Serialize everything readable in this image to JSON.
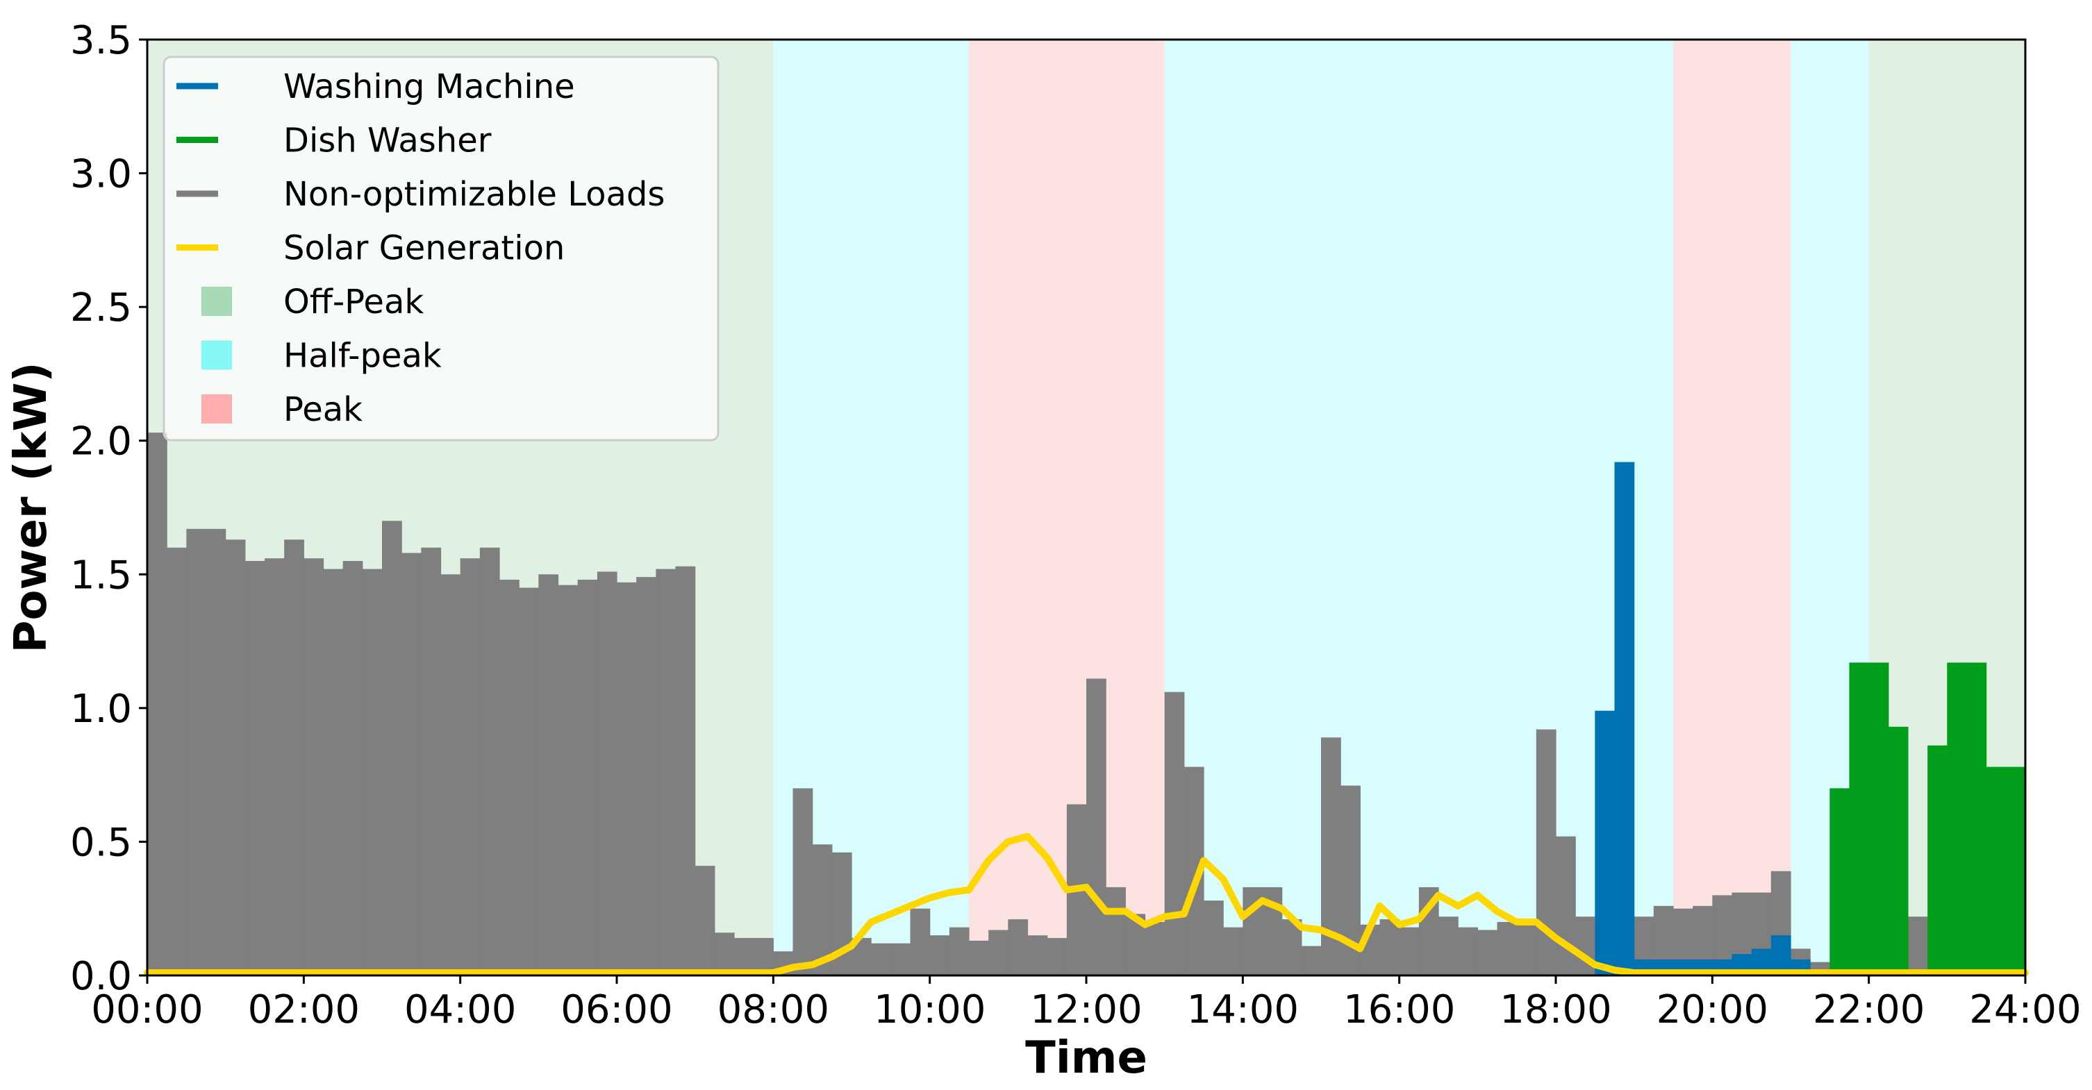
{
  "chart_data": {
    "type": "bar",
    "xlabel": "Time",
    "ylabel": "Power (kW)",
    "xlim": [
      0,
      24
    ],
    "ylim": [
      0,
      3.5
    ],
    "bin_hours": 0.25,
    "xticks": [
      {
        "value": 0,
        "label": "00:00"
      },
      {
        "value": 2,
        "label": "02:00"
      },
      {
        "value": 4,
        "label": "04:00"
      },
      {
        "value": 6,
        "label": "06:00"
      },
      {
        "value": 8,
        "label": "08:00"
      },
      {
        "value": 10,
        "label": "10:00"
      },
      {
        "value": 12,
        "label": "12:00"
      },
      {
        "value": 14,
        "label": "14:00"
      },
      {
        "value": 16,
        "label": "16:00"
      },
      {
        "value": 18,
        "label": "18:00"
      },
      {
        "value": 20,
        "label": "20:00"
      },
      {
        "value": 22,
        "label": "22:00"
      },
      {
        "value": 24,
        "label": "24:00"
      }
    ],
    "yticks": [
      {
        "value": 0,
        "label": "0.0"
      },
      {
        "value": 0.5,
        "label": "0.5"
      },
      {
        "value": 1.0,
        "label": "1.0"
      },
      {
        "value": 1.5,
        "label": "1.5"
      },
      {
        "value": 2.0,
        "label": "2.0"
      },
      {
        "value": 2.5,
        "label": "2.5"
      },
      {
        "value": 3.0,
        "label": "3.0"
      },
      {
        "value": 3.5,
        "label": "3.5"
      }
    ],
    "tariff_periods": [
      {
        "start": 0,
        "end": 8,
        "kind": "off"
      },
      {
        "start": 8,
        "end": 10.5,
        "kind": "half"
      },
      {
        "start": 10.5,
        "end": 13,
        "kind": "peak"
      },
      {
        "start": 13,
        "end": 19.5,
        "kind": "half"
      },
      {
        "start": 19.5,
        "end": 21,
        "kind": "peak"
      },
      {
        "start": 21,
        "end": 22,
        "kind": "half"
      },
      {
        "start": 22,
        "end": 24,
        "kind": "off"
      }
    ],
    "series": [
      {
        "name": "Non-optimizable Loads",
        "kind": "bar",
        "color": "#7f7f7f",
        "values": [
          2.03,
          1.6,
          1.67,
          1.67,
          1.63,
          1.55,
          1.56,
          1.63,
          1.56,
          1.52,
          1.55,
          1.52,
          1.7,
          1.58,
          1.6,
          1.5,
          1.56,
          1.6,
          1.48,
          1.45,
          1.5,
          1.46,
          1.48,
          1.51,
          1.47,
          1.49,
          1.52,
          1.53,
          0.41,
          0.16,
          0.14,
          0.14,
          0.09,
          0.7,
          0.49,
          0.46,
          0.14,
          0.12,
          0.12,
          0.25,
          0.15,
          0.18,
          0.13,
          0.17,
          0.21,
          0.15,
          0.14,
          0.64,
          1.11,
          0.33,
          0.23,
          0.2,
          1.06,
          0.78,
          0.28,
          0.18,
          0.33,
          0.33,
          0.21,
          0.11,
          0.89,
          0.71,
          0.19,
          0.21,
          0.18,
          0.33,
          0.22,
          0.18,
          0.17,
          0.2,
          0.19,
          0.92,
          0.52,
          0.22,
          0.08,
          0.08,
          0.22,
          0.26,
          0.25,
          0.26,
          0.3,
          0.31,
          0.31,
          0.39,
          0.1,
          0.05,
          0.04,
          0.04,
          0.3,
          0.2,
          0.22,
          0.13,
          0.26,
          0.1,
          0.29,
          0.29
        ]
      },
      {
        "name": "Washing Machine",
        "kind": "bar",
        "color": "#0072b2",
        "values": [
          0,
          0,
          0,
          0,
          0,
          0,
          0,
          0,
          0,
          0,
          0,
          0,
          0,
          0,
          0,
          0,
          0,
          0,
          0,
          0,
          0,
          0,
          0,
          0,
          0,
          0,
          0,
          0,
          0,
          0,
          0,
          0,
          0,
          0,
          0,
          0,
          0,
          0,
          0,
          0,
          0,
          0,
          0,
          0,
          0,
          0,
          0,
          0,
          0,
          0,
          0,
          0,
          0,
          0,
          0,
          0,
          0,
          0,
          0,
          0,
          0,
          0,
          0,
          0,
          0,
          0,
          0,
          0,
          0,
          0,
          0,
          0,
          0,
          0,
          0.99,
          1.92,
          0.06,
          0.06,
          0.06,
          0.06,
          0.06,
          0.08,
          0.1,
          0.15,
          0.06,
          0,
          0,
          0,
          0,
          0,
          0,
          0,
          0,
          0,
          0,
          0
        ]
      },
      {
        "name": "Dish Washer",
        "kind": "bar",
        "color": "#009e1a",
        "values": [
          0,
          0,
          0,
          0,
          0,
          0,
          0,
          0,
          0,
          0,
          0,
          0,
          0,
          0,
          0,
          0,
          0,
          0,
          0,
          0,
          0,
          0,
          0,
          0,
          0,
          0,
          0,
          0,
          0,
          0,
          0,
          0,
          0,
          0,
          0,
          0,
          0,
          0,
          0,
          0,
          0,
          0,
          0,
          0,
          0,
          0,
          0,
          0,
          0,
          0,
          0,
          0,
          0,
          0,
          0,
          0,
          0,
          0,
          0,
          0,
          0,
          0,
          0,
          0,
          0,
          0,
          0,
          0,
          0,
          0,
          0,
          0,
          0,
          0,
          0,
          0,
          0,
          0,
          0,
          0,
          0,
          0,
          0,
          0,
          0,
          0,
          0.7,
          1.17,
          1.17,
          0.93,
          0,
          0.86,
          1.17,
          1.17,
          0.78,
          0.78
        ]
      },
      {
        "name": "Solar Generation",
        "kind": "line",
        "color": "#ffd700",
        "x": [
          0,
          8.0,
          8.25,
          8.5,
          8.75,
          9.0,
          9.25,
          9.5,
          9.75,
          10.0,
          10.25,
          10.5,
          10.75,
          11.0,
          11.25,
          11.5,
          11.75,
          12.0,
          12.25,
          12.5,
          12.75,
          13.0,
          13.25,
          13.5,
          13.75,
          14.0,
          14.25,
          14.5,
          14.75,
          15.0,
          15.25,
          15.5,
          15.75,
          16.0,
          16.25,
          16.5,
          16.75,
          17.0,
          17.25,
          17.5,
          17.75,
          18.0,
          18.25,
          18.5,
          18.75,
          19.0,
          19.25,
          24
        ],
        "y": [
          0.01,
          0.01,
          0.03,
          0.04,
          0.07,
          0.11,
          0.2,
          0.23,
          0.26,
          0.29,
          0.31,
          0.32,
          0.43,
          0.5,
          0.52,
          0.44,
          0.32,
          0.33,
          0.24,
          0.24,
          0.19,
          0.22,
          0.23,
          0.43,
          0.36,
          0.22,
          0.28,
          0.25,
          0.18,
          0.17,
          0.14,
          0.1,
          0.26,
          0.19,
          0.21,
          0.3,
          0.26,
          0.3,
          0.24,
          0.2,
          0.2,
          0.14,
          0.09,
          0.04,
          0.02,
          0.01,
          0.01,
          0.01
        ]
      }
    ],
    "legend": {
      "position": "upper-left",
      "entries": [
        {
          "label": "Washing Machine",
          "marker": "line",
          "color": "#0072b2"
        },
        {
          "label": "Dish Washer",
          "marker": "line",
          "color": "#009e1a"
        },
        {
          "label": "Non-optimizable Loads",
          "marker": "line",
          "color": "#7f7f7f"
        },
        {
          "label": "Solar Generation",
          "marker": "line",
          "color": "#ffd700"
        },
        {
          "label": "Off-Peak",
          "marker": "patch",
          "color": "#a3d9b1"
        },
        {
          "label": "Half-peak",
          "marker": "patch",
          "color": "#7ff8f8"
        },
        {
          "label": "Peak",
          "marker": "patch",
          "color": "#ffabab"
        }
      ]
    },
    "period_colors": {
      "off": "#e0f0e3",
      "half": "#d9fcfc",
      "peak": "#fde2e2"
    }
  }
}
